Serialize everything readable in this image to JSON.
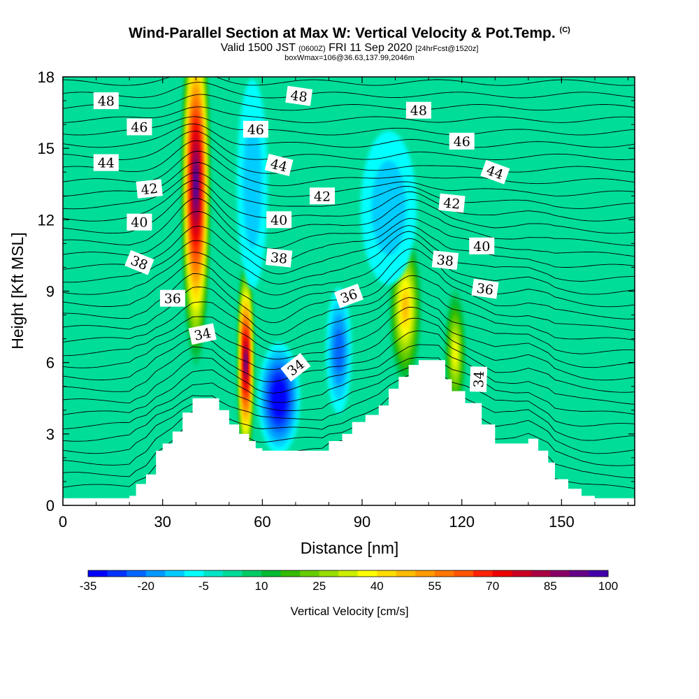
{
  "titles": {
    "main": "Wind-Parallel Section at Max W: Vertical Velocity & Pot.Temp.",
    "main_suffix": "(C)",
    "valid_prefix": "Valid 1500 JST",
    "valid_utc": "(0600Z)",
    "valid_date": "FRI 11 Sep 2020",
    "forecast": "[24hrFcst@1520z]",
    "box_info": "boxWmax=106@36.63,137.99,2046m"
  },
  "chart_data": {
    "type": "heatmap",
    "xlabel": "Distance [nm]",
    "ylabel": "Height [Kft MSL]",
    "xlim": [
      0,
      172
    ],
    "ylim": [
      0,
      18
    ],
    "x_ticks": [
      0,
      30,
      60,
      90,
      120,
      150
    ],
    "y_ticks": [
      0,
      3,
      6,
      9,
      12,
      15,
      18
    ],
    "colorbar": {
      "label": "Vertical Velocity [cm/s]",
      "levels": [
        -35,
        -30,
        -25,
        -20,
        -15,
        -10,
        -5,
        0,
        5,
        10,
        15,
        20,
        25,
        30,
        35,
        40,
        45,
        50,
        55,
        60,
        65,
        70,
        75,
        80,
        85,
        90,
        95,
        100
      ],
      "tick_labels": [
        "-35",
        "-20",
        "-5",
        "10",
        "25",
        "40",
        "55",
        "70",
        "85",
        "100"
      ],
      "colors": [
        "#0000ff",
        "#0033ff",
        "#0066ff",
        "#0099ff",
        "#00ccff",
        "#00ffff",
        "#00e5c8",
        "#00dd99",
        "#00cc66",
        "#00bb33",
        "#33bb00",
        "#66cc00",
        "#99dd00",
        "#ccee00",
        "#ffff00",
        "#ffdd00",
        "#ffbb00",
        "#ff9900",
        "#ff7700",
        "#ff5500",
        "#ff2200",
        "#ee0000",
        "#cc0022",
        "#aa0044",
        "#880066",
        "#660088",
        "#4400aa"
      ]
    },
    "terrain_profile": [
      [
        0,
        0.3
      ],
      [
        10,
        0.3
      ],
      [
        20,
        0.4
      ],
      [
        22,
        0.9
      ],
      [
        25,
        1.3
      ],
      [
        28,
        2.3
      ],
      [
        30,
        2.6
      ],
      [
        33,
        3.1
      ],
      [
        36,
        3.9
      ],
      [
        39,
        4.5
      ],
      [
        45,
        4.5
      ],
      [
        47,
        4.0
      ],
      [
        50,
        3.4
      ],
      [
        53,
        3.0
      ],
      [
        56,
        2.7
      ],
      [
        58,
        2.4
      ],
      [
        60,
        2.3
      ],
      [
        78,
        2.3
      ],
      [
        80,
        2.7
      ],
      [
        84,
        3.0
      ],
      [
        87,
        3.5
      ],
      [
        91,
        3.8
      ],
      [
        95,
        4.2
      ],
      [
        98,
        4.9
      ],
      [
        101,
        5.4
      ],
      [
        104,
        5.9
      ],
      [
        107,
        6.1
      ],
      [
        113,
        6.1
      ],
      [
        115,
        5.3
      ],
      [
        117,
        4.8
      ],
      [
        121,
        4.3
      ],
      [
        126,
        3.4
      ],
      [
        130,
        2.6
      ],
      [
        136,
        2.6
      ],
      [
        140,
        2.8
      ],
      [
        143,
        2.3
      ],
      [
        146,
        1.8
      ],
      [
        148,
        1.1
      ],
      [
        152,
        0.7
      ],
      [
        156,
        0.4
      ],
      [
        160,
        0.3
      ],
      [
        172,
        0.3
      ]
    ],
    "updraft_cores": [
      {
        "x": 40,
        "y": 13.5,
        "peak": 95
      },
      {
        "x": 55,
        "y": 6.0,
        "peak": 90
      },
      {
        "x": 103,
        "y": 8.3,
        "peak": 45
      },
      {
        "x": 118,
        "y": 6.4,
        "peak": 35
      }
    ],
    "downdraft_cores": [
      {
        "x": 65,
        "y": 4.5,
        "peak": -35
      },
      {
        "x": 83,
        "y": 6.5,
        "peak": -20
      },
      {
        "x": 57,
        "y": 13.5,
        "peak": -10
      },
      {
        "x": 98,
        "y": 12.5,
        "peak": -10
      }
    ],
    "theta_contours": [
      {
        "value": "34",
        "labels": [
          [
            42,
            7.2,
            -12
          ],
          [
            70,
            5.8,
            -38
          ],
          [
            125,
            5.3,
            -88
          ]
        ]
      },
      {
        "value": "36",
        "labels": [
          [
            33,
            8.7,
            0
          ],
          [
            86,
            8.8,
            -20
          ],
          [
            127,
            9.1,
            8
          ]
        ]
      },
      {
        "value": "38",
        "labels": [
          [
            23,
            10.2,
            22
          ],
          [
            65,
            10.4,
            6
          ],
          [
            115,
            10.3,
            6
          ]
        ]
      },
      {
        "value": "40",
        "labels": [
          [
            23,
            11.9,
            0
          ],
          [
            65,
            12.0,
            0
          ],
          [
            126,
            10.9,
            0
          ]
        ]
      },
      {
        "value": "42",
        "labels": [
          [
            26,
            13.3,
            -6
          ],
          [
            78,
            13.0,
            0
          ],
          [
            117,
            12.7,
            6
          ]
        ]
      },
      {
        "value": "44",
        "labels": [
          [
            13,
            14.4,
            0
          ],
          [
            65,
            14.3,
            14
          ],
          [
            130,
            14.0,
            20
          ]
        ]
      },
      {
        "value": "46",
        "labels": [
          [
            23,
            15.9,
            0
          ],
          [
            58,
            15.8,
            0
          ],
          [
            120,
            15.3,
            0
          ]
        ]
      },
      {
        "value": "48",
        "labels": [
          [
            13,
            17.0,
            0
          ],
          [
            71,
            17.2,
            8
          ],
          [
            107,
            16.6,
            0
          ]
        ]
      }
    ]
  }
}
